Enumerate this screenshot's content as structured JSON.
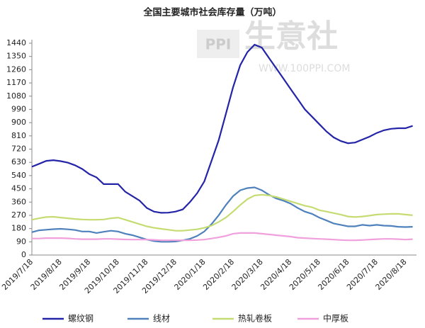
{
  "chart_data": {
    "type": "line",
    "title": "全国主要城市社会库存量（万吨）",
    "watermark": {
      "logo": "PPI",
      "brand": "生意社",
      "url": "WWW.100PPI.COM"
    },
    "categories": [
      "2019/7/18",
      null,
      null,
      null,
      "2019/8/18",
      null,
      null,
      null,
      "2019/9/18",
      null,
      null,
      null,
      "2019/10/18",
      null,
      null,
      null,
      "2019/11/18",
      null,
      null,
      null,
      "2019/12/18",
      null,
      null,
      null,
      "2020/1/18",
      null,
      null,
      null,
      "2020/2/18",
      null,
      null,
      null,
      "2020/3/18",
      null,
      null,
      null,
      "2020/4/18",
      null,
      null,
      null,
      "2020/5/18",
      null,
      null,
      null,
      "2020/6/18",
      null,
      null,
      null,
      "2020/7/18",
      null,
      null,
      null,
      "2020/8/18",
      null
    ],
    "series": [
      {
        "name": "螺纹钢",
        "color": "#2424a8",
        "values": [
          600,
          620,
          640,
          645,
          638,
          628,
          610,
          585,
          550,
          528,
          482,
          482,
          482,
          430,
          400,
          370,
          320,
          295,
          287,
          288,
          295,
          310,
          360,
          420,
          500,
          640,
          780,
          960,
          1140,
          1290,
          1380,
          1430,
          1410,
          1340,
          1270,
          1200,
          1130,
          1060,
          990,
          940,
          890,
          840,
          800,
          775,
          760,
          765,
          785,
          805,
          830,
          848,
          858,
          862,
          862,
          878
        ]
      },
      {
        "name": "线材",
        "color": "#4f81bd",
        "values": [
          155,
          168,
          172,
          176,
          178,
          175,
          170,
          160,
          160,
          150,
          158,
          165,
          160,
          145,
          135,
          120,
          105,
          95,
          90,
          90,
          92,
          100,
          110,
          130,
          160,
          210,
          270,
          340,
          400,
          440,
          455,
          460,
          440,
          410,
          385,
          370,
          350,
          320,
          295,
          280,
          255,
          235,
          215,
          205,
          195,
          195,
          205,
          200,
          205,
          200,
          198,
          192,
          190,
          192
        ]
      },
      {
        "name": "热轧卷板",
        "color": "#c5dc73",
        "values": [
          240,
          250,
          258,
          260,
          255,
          250,
          245,
          242,
          240,
          240,
          242,
          250,
          255,
          240,
          225,
          210,
          195,
          185,
          178,
          172,
          165,
          165,
          170,
          175,
          185,
          200,
          225,
          255,
          295,
          340,
          380,
          405,
          410,
          405,
          395,
          380,
          365,
          350,
          335,
          325,
          305,
          295,
          285,
          275,
          262,
          258,
          262,
          268,
          275,
          278,
          280,
          280,
          275,
          270
        ]
      },
      {
        "name": "中厚板",
        "color": "#f0a0dc",
        "values": [
          112,
          112,
          115,
          115,
          115,
          113,
          110,
          108,
          108,
          108,
          110,
          110,
          108,
          106,
          105,
          105,
          105,
          103,
          100,
          100,
          100,
          100,
          100,
          102,
          105,
          112,
          120,
          130,
          145,
          150,
          150,
          150,
          145,
          140,
          135,
          130,
          125,
          118,
          115,
          112,
          110,
          108,
          105,
          102,
          100,
          100,
          102,
          105,
          108,
          110,
          110,
          108,
          105,
          108
        ]
      }
    ],
    "ylim": [
      0,
      1440
    ],
    "yticks": [
      0,
      90,
      180,
      270,
      360,
      450,
      540,
      630,
      720,
      810,
      900,
      990,
      1080,
      1170,
      1260,
      1350,
      1440
    ],
    "grid": false,
    "legend": "bottom"
  }
}
